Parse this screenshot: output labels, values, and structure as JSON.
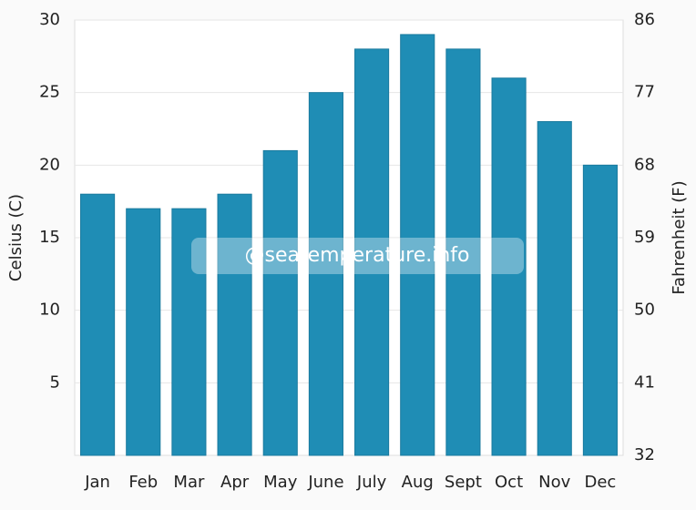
{
  "chart_data": {
    "type": "bar",
    "categories": [
      "Jan",
      "Feb",
      "Mar",
      "Apr",
      "May",
      "June",
      "July",
      "Aug",
      "Sept",
      "Oct",
      "Nov",
      "Dec"
    ],
    "values": [
      18,
      17,
      17,
      18,
      21,
      25,
      28,
      29,
      28,
      26,
      23,
      20
    ],
    "color": "#1f8db5",
    "ylim": [
      0,
      30
    ],
    "yticks": [
      5,
      10,
      15,
      20,
      25,
      30
    ],
    "y2lim": [
      32,
      86
    ],
    "y2ticks": [
      32,
      41,
      50,
      59,
      68,
      77,
      86
    ],
    "ylabel": "Celsius (C)",
    "y2label": "Fahrenheit (F)",
    "watermark": "@seatemperature.info",
    "grid": true
  }
}
